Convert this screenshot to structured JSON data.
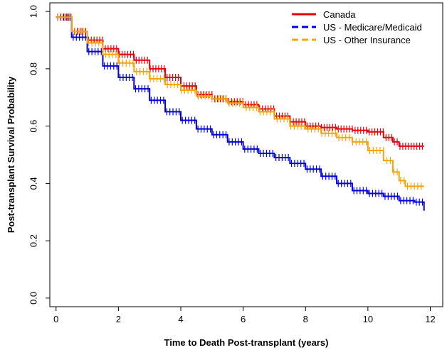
{
  "chart_data": {
    "type": "line",
    "title": "",
    "xlabel": "Time to Death Post-transplant (years)",
    "ylabel": "Post-transplant Survival Probability",
    "xlim": [
      0,
      12
    ],
    "ylim": [
      0,
      1
    ],
    "xticks": [
      0,
      2,
      4,
      6,
      8,
      10,
      12
    ],
    "yticks": [
      0.0,
      0.2,
      0.4,
      0.6,
      0.8,
      1.0
    ],
    "xtick_labels": [
      "0",
      "2",
      "4",
      "6",
      "8",
      "10",
      "12"
    ],
    "ytick_labels": [
      "0.0",
      "0.2",
      "0.4",
      "0.6",
      "0.8",
      "1.0"
    ],
    "grid": false,
    "legend_position": "top-right",
    "series": [
      {
        "name": "Canada",
        "color": "#e8000b",
        "style": "solid",
        "x": [
          0,
          0.5,
          1,
          1.5,
          2,
          2.5,
          3,
          3.5,
          4,
          4.5,
          5,
          5.5,
          6,
          6.5,
          7,
          7.5,
          8,
          8.5,
          9,
          9.5,
          10,
          10.5,
          10.8,
          11,
          11.5,
          11.8
        ],
        "y": [
          0.98,
          0.93,
          0.9,
          0.87,
          0.85,
          0.83,
          0.8,
          0.77,
          0.74,
          0.71,
          0.695,
          0.685,
          0.675,
          0.66,
          0.635,
          0.615,
          0.6,
          0.595,
          0.59,
          0.585,
          0.58,
          0.56,
          0.545,
          0.53,
          0.53,
          0.53
        ]
      },
      {
        "name": "US - Medicare/Medicaid",
        "color": "#0000e0",
        "style": "dashed",
        "x": [
          0,
          0.5,
          1,
          1.5,
          2,
          2.5,
          3,
          3.5,
          4,
          4.5,
          5,
          5.5,
          6,
          6.5,
          7,
          7.5,
          8,
          8.5,
          9,
          9.5,
          10,
          10.5,
          11,
          11.5,
          11.8
        ],
        "y": [
          0.98,
          0.91,
          0.86,
          0.81,
          0.77,
          0.73,
          0.69,
          0.65,
          0.62,
          0.59,
          0.57,
          0.545,
          0.52,
          0.505,
          0.49,
          0.47,
          0.45,
          0.425,
          0.4,
          0.375,
          0.365,
          0.355,
          0.34,
          0.335,
          0.305
        ]
      },
      {
        "name": "US - Other Insurance",
        "color": "#f5a50a",
        "style": "dashed",
        "x": [
          0,
          0.5,
          1,
          1.5,
          2,
          2.5,
          3,
          3.5,
          4,
          4.5,
          5,
          5.5,
          6,
          6.5,
          7,
          7.5,
          8,
          8.5,
          9,
          9.5,
          10,
          10.5,
          10.8,
          11,
          11.2,
          11.5,
          11.8
        ],
        "y": [
          0.98,
          0.93,
          0.89,
          0.85,
          0.82,
          0.79,
          0.765,
          0.745,
          0.725,
          0.705,
          0.695,
          0.68,
          0.665,
          0.65,
          0.625,
          0.6,
          0.59,
          0.575,
          0.56,
          0.545,
          0.515,
          0.48,
          0.44,
          0.41,
          0.39,
          0.39,
          0.39
        ]
      }
    ]
  }
}
